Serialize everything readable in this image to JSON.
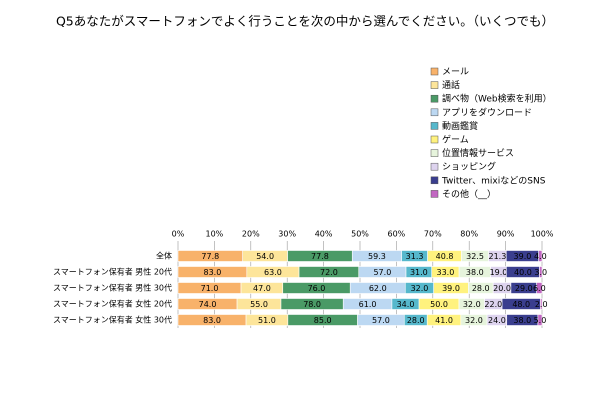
{
  "chart_data": {
    "type": "stacked_bar_percent",
    "title": "Q5あなたがスマートフォンでよく行うことを次の中から選んでください。（いくつでも）",
    "categories": [
      "全体",
      "スマートフォン保有者 男性 20代",
      "スマートフォン保有者 男性 30代",
      "スマートフォン保有者 女性 20代",
      "スマートフォン保有者 女性 30代"
    ],
    "xlim": [
      0,
      100
    ],
    "xticks": [
      {
        "value": 0,
        "label": "0%"
      },
      {
        "value": 10,
        "label": "10%"
      },
      {
        "value": 20,
        "label": "20%"
      },
      {
        "value": 30,
        "label": "30%"
      },
      {
        "value": 40,
        "label": "40%"
      },
      {
        "value": 50,
        "label": "50%"
      },
      {
        "value": 60,
        "label": "60%"
      },
      {
        "value": 70,
        "label": "70%"
      },
      {
        "value": 80,
        "label": "80%"
      },
      {
        "value": 90,
        "label": "90%"
      },
      {
        "value": 100,
        "label": "100%"
      }
    ],
    "grid": true,
    "legend": "top-right",
    "series": [
      {
        "name": "メール",
        "color": "#f8b26a",
        "values": [
          77.8,
          83,
          71,
          74,
          83
        ],
        "value_labels": [
          "77.8",
          "83.0",
          "71.0",
          "74.0",
          "83.0"
        ]
      },
      {
        "name": "通話",
        "color": "#fde59a",
        "values": [
          54,
          63,
          47,
          55,
          51
        ],
        "value_labels": [
          "54.0",
          "63.0",
          "47.0",
          "55.0",
          "51.0"
        ]
      },
      {
        "name": "調べ物（Web検索を利用）",
        "color": "#4a9a66",
        "values": [
          77.8,
          72,
          76,
          78,
          85
        ],
        "value_labels": [
          "77.8",
          "72.0",
          "76.0",
          "78.0",
          "85.0"
        ]
      },
      {
        "name": "アプリをダウンロード",
        "color": "#bcd8f2",
        "values": [
          59.3,
          57,
          62,
          61,
          57
        ],
        "value_labels": [
          "59.3",
          "57.0",
          "62.0",
          "61.0",
          "57.0"
        ]
      },
      {
        "name": "動画鑑賞",
        "color": "#56b8cc",
        "values": [
          31.3,
          31,
          32,
          34,
          28
        ],
        "value_labels": [
          "31.3",
          "31.0",
          "32.0",
          "34.0",
          "28.0"
        ]
      },
      {
        "name": "ゲーム",
        "color": "#fff27e",
        "values": [
          40.8,
          33,
          39,
          50,
          41
        ],
        "value_labels": [
          "40.8",
          "33.0",
          "39.0",
          "50.0",
          "41.0"
        ]
      },
      {
        "name": "位置情報サービス",
        "color": "#e6f4dc",
        "values": [
          32.5,
          38,
          28,
          32,
          32
        ],
        "value_labels": [
          "32.5",
          "38.0",
          "28.0",
          "32.0",
          "32.0"
        ]
      },
      {
        "name": "ショッピング",
        "color": "#ddd3ee",
        "values": [
          21.3,
          19,
          20,
          22,
          24
        ],
        "value_labels": [
          "21.3",
          "19.0",
          "20.0",
          "22.0",
          "24.0"
        ]
      },
      {
        "name": "Twitter、mixiなどのSNS",
        "color": "#3a3e8e",
        "values": [
          39,
          40,
          29,
          48,
          38
        ],
        "value_labels": [
          "39.0",
          "40.0",
          "29.0",
          "48.0",
          "38.0"
        ]
      },
      {
        "name": "その他（__）",
        "color": "#c267c2",
        "values": [
          4,
          3,
          6,
          2,
          5
        ],
        "value_labels": [
          "4.0",
          "3.0",
          "6.0",
          "2.0",
          "5.0"
        ]
      }
    ]
  }
}
